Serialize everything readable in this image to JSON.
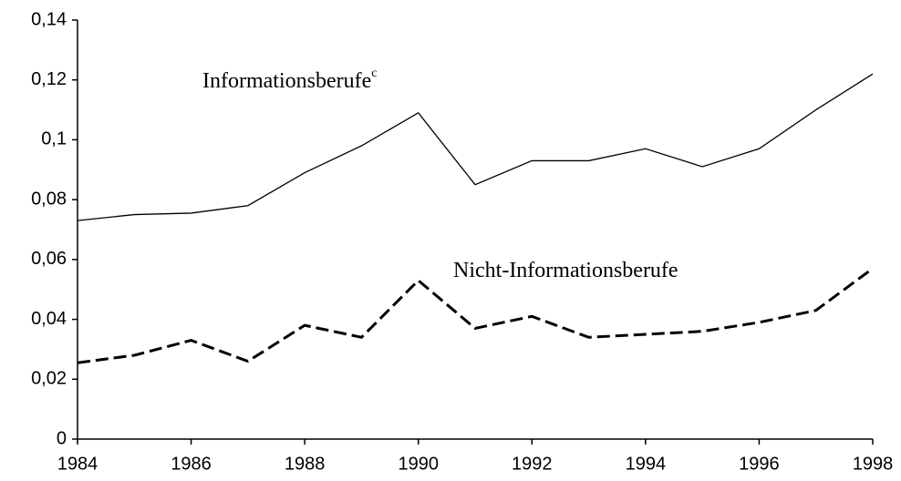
{
  "chart_data": {
    "type": "line",
    "x": [
      1984,
      1985,
      1986,
      1987,
      1988,
      1989,
      1990,
      1991,
      1992,
      1993,
      1994,
      1995,
      1996,
      1997,
      1998
    ],
    "series": [
      {
        "name": "Informationsberufe",
        "footnote_mark": "c",
        "color": "#000000",
        "style": "solid",
        "values": [
          0.073,
          0.075,
          0.0755,
          0.078,
          0.089,
          0.098,
          0.109,
          0.085,
          0.093,
          0.093,
          0.097,
          0.091,
          0.097,
          0.11,
          0.122
        ]
      },
      {
        "name": "Nicht-Informationsberufe",
        "color": "#000000",
        "style": "dashed",
        "values": [
          0.0255,
          0.028,
          0.033,
          0.026,
          0.038,
          0.034,
          0.053,
          0.037,
          0.041,
          0.034,
          0.035,
          0.036,
          0.039,
          0.043,
          0.057
        ]
      }
    ],
    "xlim": [
      1984,
      1998
    ],
    "xticks": [
      1984,
      1986,
      1988,
      1990,
      1992,
      1994,
      1996,
      1998
    ],
    "ylim": [
      0,
      0.14
    ],
    "yticks": [
      0,
      {
        "value": 0.02,
        "label": "0,02"
      },
      {
        "value": 0.04,
        "label": "0,04"
      },
      {
        "value": 0.06,
        "label": "0,06"
      },
      {
        "value": 0.08,
        "label": "0,08"
      },
      {
        "value": 0.1,
        "label": "0,1"
      },
      {
        "value": 0.12,
        "label": "0,12"
      },
      {
        "value": 0.14,
        "label": "0,14"
      }
    ],
    "grid": false
  }
}
